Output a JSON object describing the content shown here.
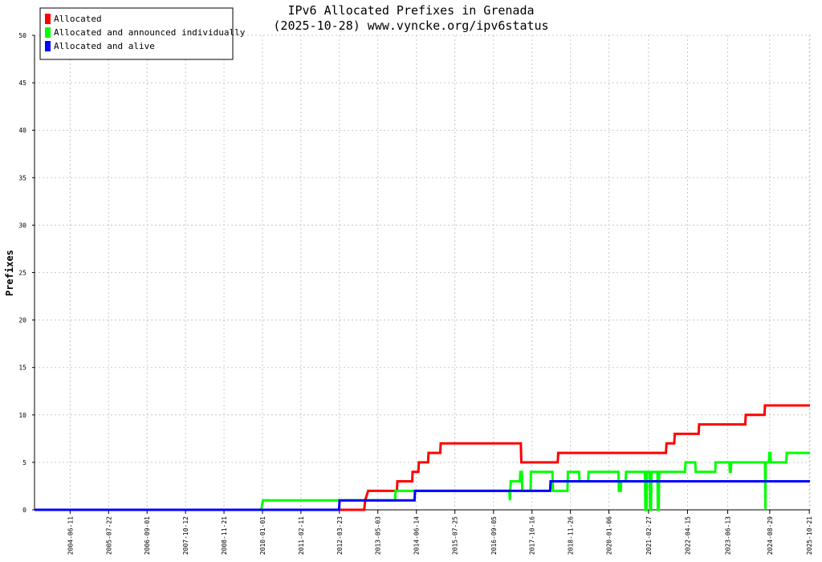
{
  "chart_data": {
    "type": "line",
    "title": "IPv6 Allocated Prefixes in Grenada",
    "subtitle": "(2025-10-28) www.vyncke.org/ipv6status",
    "ylabel": "Prefixes",
    "xlabel": "",
    "ylim": [
      0,
      50
    ],
    "yticks": [
      0,
      5,
      10,
      15,
      20,
      25,
      30,
      35,
      40,
      45,
      50
    ],
    "xlim": [
      "2003-06-01",
      "2025-10-28"
    ],
    "xticks": [
      "2004-06-11",
      "2005-07-22",
      "2006-09-01",
      "2007-10-12",
      "2008-11-21",
      "2010-01-01",
      "2011-02-11",
      "2012-03-23",
      "2013-05-03",
      "2014-06-14",
      "2015-07-25",
      "2016-09-05",
      "2017-10-16",
      "2018-11-26",
      "2020-01-06",
      "2021-02-27",
      "2022-04-15",
      "2023-06-13",
      "2024-08-29",
      "2025-10-21"
    ],
    "grid": true,
    "legend": "top-left",
    "series": [
      {
        "name": "Allocated",
        "color": "#ff0000",
        "points": [
          [
            "2003-06-01",
            0
          ],
          [
            "2012-12-10",
            0
          ],
          [
            "2012-12-20",
            1
          ],
          [
            "2013-01-20",
            2
          ],
          [
            "2013-11-20",
            2
          ],
          [
            "2013-11-25",
            3
          ],
          [
            "2014-05-01",
            3
          ],
          [
            "2014-05-05",
            4
          ],
          [
            "2014-07-05",
            4
          ],
          [
            "2014-07-10",
            5
          ],
          [
            "2014-10-15",
            5
          ],
          [
            "2014-10-20",
            6
          ],
          [
            "2015-02-20",
            6
          ],
          [
            "2015-02-25",
            7
          ],
          [
            "2017-06-20",
            7
          ],
          [
            "2017-06-25",
            5
          ],
          [
            "2018-07-15",
            5
          ],
          [
            "2018-07-20",
            6
          ],
          [
            "2021-08-30",
            6
          ],
          [
            "2021-09-05",
            7
          ],
          [
            "2021-11-25",
            7
          ],
          [
            "2021-12-01",
            8
          ],
          [
            "2022-08-10",
            8
          ],
          [
            "2022-08-15",
            9
          ],
          [
            "2023-12-15",
            9
          ],
          [
            "2023-12-20",
            10
          ],
          [
            "2024-07-05",
            10
          ],
          [
            "2024-07-10",
            11
          ],
          [
            "2025-10-28",
            11
          ]
        ]
      },
      {
        "name": "Allocated and announced individually",
        "color": "#00ff00",
        "points": [
          [
            "2003-06-01",
            0
          ],
          [
            "2009-12-20",
            0
          ],
          [
            "2010-01-05",
            1
          ],
          [
            "2013-11-01",
            1
          ],
          [
            "2013-11-05",
            2
          ],
          [
            "2017-02-20",
            2
          ],
          [
            "2017-02-25",
            1
          ],
          [
            "2017-03-05",
            3
          ],
          [
            "2017-06-10",
            3
          ],
          [
            "2017-06-15",
            4
          ],
          [
            "2017-07-01",
            4
          ],
          [
            "2017-07-05",
            2
          ],
          [
            "2017-10-01",
            2
          ],
          [
            "2017-10-05",
            4
          ],
          [
            "2018-05-20",
            4
          ],
          [
            "2018-05-25",
            2
          ],
          [
            "2018-10-25",
            2
          ],
          [
            "2018-10-30",
            4
          ],
          [
            "2019-02-25",
            4
          ],
          [
            "2019-03-01",
            3
          ],
          [
            "2019-06-01",
            3
          ],
          [
            "2019-06-05",
            4
          ],
          [
            "2020-04-15",
            4
          ],
          [
            "2020-04-20",
            2
          ],
          [
            "2020-05-10",
            2
          ],
          [
            "2020-05-15",
            3
          ],
          [
            "2020-07-01",
            3
          ],
          [
            "2020-07-05",
            4
          ],
          [
            "2021-01-20",
            4
          ],
          [
            "2021-01-25",
            0
          ],
          [
            "2021-02-05",
            0
          ],
          [
            "2021-02-10",
            4
          ],
          [
            "2021-03-10",
            4
          ],
          [
            "2021-03-15",
            0
          ],
          [
            "2021-03-25",
            0
          ],
          [
            "2021-03-30",
            4
          ],
          [
            "2021-06-01",
            4
          ],
          [
            "2021-06-05",
            0
          ],
          [
            "2021-06-15",
            0
          ],
          [
            "2021-06-20",
            4
          ],
          [
            "2022-03-20",
            4
          ],
          [
            "2022-03-25",
            5
          ],
          [
            "2022-07-05",
            5
          ],
          [
            "2022-07-10",
            4
          ],
          [
            "2023-02-01",
            4
          ],
          [
            "2023-02-05",
            5
          ],
          [
            "2023-07-01",
            5
          ],
          [
            "2023-07-05",
            4
          ],
          [
            "2023-07-15",
            4
          ],
          [
            "2023-07-20",
            5
          ],
          [
            "2024-07-10",
            5
          ],
          [
            "2024-07-15",
            0
          ],
          [
            "2024-07-18",
            5
          ],
          [
            "2024-08-20",
            5
          ],
          [
            "2024-08-25",
            6
          ],
          [
            "2024-09-05",
            6
          ],
          [
            "2024-09-10",
            5
          ],
          [
            "2025-02-20",
            5
          ],
          [
            "2025-02-25",
            6
          ],
          [
            "2025-10-28",
            6
          ]
        ]
      },
      {
        "name": "Allocated and alive",
        "color": "#0000ff",
        "points": [
          [
            "2003-06-01",
            0
          ],
          [
            "2012-03-20",
            0
          ],
          [
            "2012-03-25",
            1
          ],
          [
            "2014-05-25",
            1
          ],
          [
            "2014-05-30",
            2
          ],
          [
            "2018-04-25",
            2
          ],
          [
            "2018-04-30",
            3
          ],
          [
            "2025-10-28",
            3
          ]
        ]
      }
    ]
  }
}
